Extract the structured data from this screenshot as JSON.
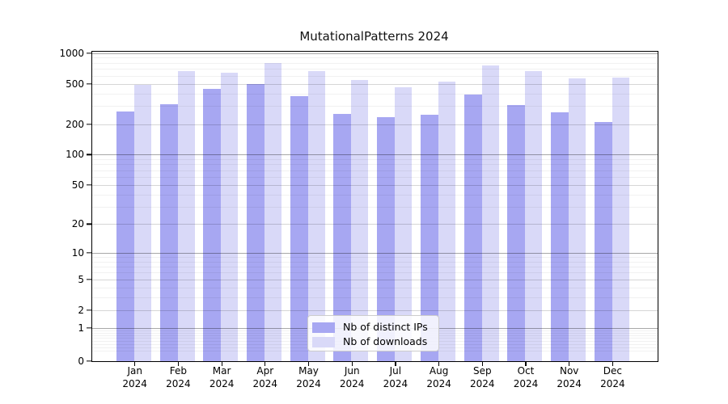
{
  "chart_data": {
    "type": "bar",
    "title": "MutationalPatterns 2024",
    "categories": [
      "Jan 2024",
      "Feb 2024",
      "Mar 2024",
      "Apr 2024",
      "May 2024",
      "Jun 2024",
      "Jul 2024",
      "Aug 2024",
      "Sep 2024",
      "Oct 2024",
      "Nov 2024",
      "Dec 2024"
    ],
    "series": [
      {
        "name": "Nb of distinct IPs",
        "color": "#a7a7f2",
        "values": [
          265,
          312,
          445,
          500,
          375,
          253,
          233,
          248,
          390,
          310,
          262,
          210
        ]
      },
      {
        "name": "Nb of downloads",
        "color": "#d9d9f8",
        "values": [
          490,
          670,
          645,
          795,
          665,
          548,
          460,
          527,
          756,
          665,
          562,
          577
        ]
      }
    ],
    "y_axis": {
      "scale": "log1p",
      "ticks": [
        0,
        1,
        2,
        5,
        10,
        20,
        50,
        100,
        200,
        500,
        1000
      ],
      "range": [
        0,
        1000
      ]
    },
    "x_axis": {
      "label": ""
    },
    "legend_position": "bottom-center",
    "grid": true,
    "colors": {
      "background": "#ffffff",
      "major_grid": "#a8a8a8",
      "minor_grid": "#f0f0f0",
      "axis": "#000000"
    }
  }
}
